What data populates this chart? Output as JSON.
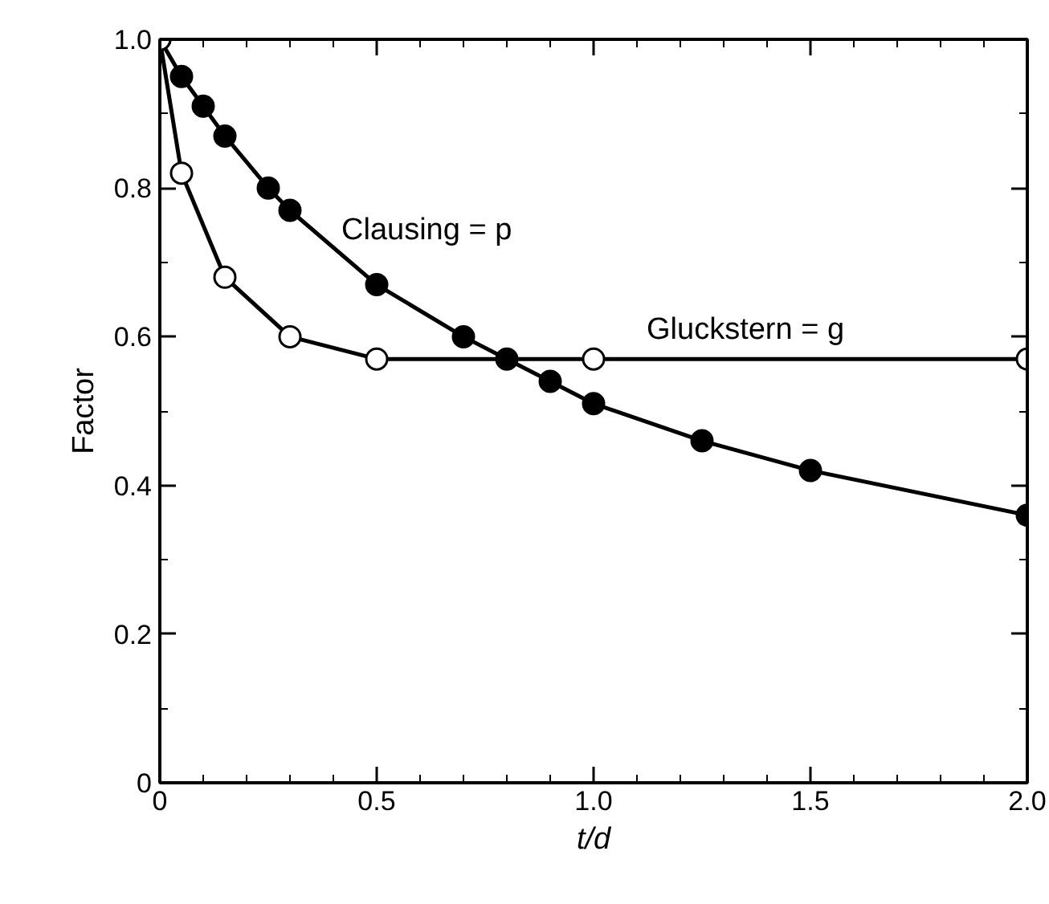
{
  "chart_data": {
    "type": "line",
    "xlabel": "t/d",
    "ylabel": "Factor",
    "series": [
      {
        "color": "#000000",
        "x": [
          0,
          0.05,
          0.1,
          0.15,
          0.25,
          0.3,
          0.5,
          0.7,
          0.8,
          0.9,
          1.0,
          1.25,
          1.5,
          2.0
        ],
        "values": [
          1.0,
          0.95,
          0.91,
          0.87,
          0.8,
          0.77,
          0.67,
          0.6,
          0.57,
          0.54,
          0.51,
          0.46,
          0.42,
          0.36
        ]
      },
      {
        "color": "#ffffff",
        "x": [
          0,
          0.05,
          0.15,
          0.3,
          0.5,
          1.0,
          2.0
        ],
        "values": [
          1.0,
          0.82,
          0.68,
          0.6,
          0.57,
          0.57,
          0.57
        ]
      }
    ],
    "annotations": [
      "Clausing = p",
      "Gluckstern = g"
    ],
    "xlim": [
      0,
      2.0
    ],
    "ylim": [
      0,
      1.0
    ],
    "xticks": [
      0,
      0.5,
      {
        "value": 1.0,
        "label": "1.0"
      },
      1.5,
      {
        "value": 2.0,
        "label": "2.0"
      }
    ],
    "yticks": [
      0,
      0.2,
      0.4,
      0.6,
      0.8,
      {
        "value": 1.0,
        "label": "1.0"
      }
    ],
    "marker": "circle",
    "line_style": "solid"
  }
}
